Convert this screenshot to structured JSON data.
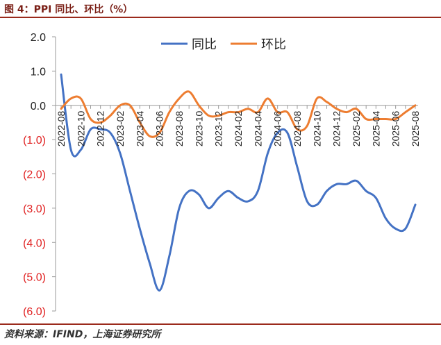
{
  "figure": {
    "title": "图 4：PPI 同比、环比（%）",
    "source": "资料来源：IFIND，上海证券研究所"
  },
  "colors": {
    "yoy": "#4472C4",
    "mom": "#ED7D31",
    "negative_tick": "#e02020",
    "positive_tick": "#222222",
    "axis": "#999999"
  },
  "chart_data": {
    "type": "line",
    "ylim": [
      -6.0,
      2.0
    ],
    "yticks": [
      2.0,
      1.0,
      0.0,
      -1.0,
      -2.0,
      -3.0,
      -4.0,
      -5.0,
      -6.0
    ],
    "ytick_labels": [
      "2.0",
      "1.0",
      "0.0",
      "(1.0)",
      "(2.0)",
      "(3.0)",
      "(4.0)",
      "(5.0)",
      "(6.0)"
    ],
    "x": [
      "2022-08",
      "2022-09",
      "2022-10",
      "2022-11",
      "2022-12",
      "2023-01",
      "2023-02",
      "2023-03",
      "2023-04",
      "2023-05",
      "2023-06",
      "2023-07",
      "2023-08",
      "2023-09",
      "2023-10",
      "2023-11",
      "2023-12",
      "2024-01",
      "2024-02",
      "2024-03",
      "2024-04",
      "2024-05",
      "2024-06",
      "2024-07",
      "2024-08",
      "2024-09",
      "2024-10",
      "2024-11",
      "2024-12",
      "2025-01",
      "2025-02",
      "2025-03",
      "2025-04",
      "2025-05",
      "2025-06",
      "2025-07",
      "2025-08"
    ],
    "xtick_labels": [
      "2022-08",
      "2022-10",
      "2022-12",
      "2023-02",
      "2023-04",
      "2023-06",
      "2023-08",
      "2023-10",
      "2023-12",
      "2024-02",
      "2024-04",
      "2024-06",
      "2024-08",
      "2024-10",
      "2024-12",
      "2025-02",
      "2025-04",
      "2025-06",
      "2025-08"
    ],
    "legend_position": "top-center",
    "series": [
      {
        "name": "同比",
        "color": "#4472C4",
        "values": [
          0.9,
          -1.3,
          -1.3,
          -0.7,
          -0.7,
          -0.8,
          -1.4,
          -2.5,
          -3.6,
          -4.6,
          -5.4,
          -4.4,
          -3.0,
          -2.5,
          -2.6,
          -3.0,
          -2.7,
          -2.5,
          -2.7,
          -2.8,
          -2.5,
          -1.4,
          -0.8,
          -0.8,
          -1.8,
          -2.8,
          -2.9,
          -2.5,
          -2.3,
          -2.3,
          -2.2,
          -2.5,
          -2.7,
          -3.3,
          -3.6,
          -3.6,
          -2.9
        ]
      },
      {
        "name": "环比",
        "color": "#ED7D31",
        "values": [
          -0.1,
          0.2,
          0.2,
          -0.4,
          -0.5,
          -0.3,
          0.0,
          0.0,
          -0.5,
          -0.9,
          -0.8,
          -0.2,
          0.2,
          0.4,
          0.0,
          -0.3,
          -0.3,
          -0.2,
          -0.2,
          -0.1,
          -0.2,
          0.2,
          -0.2,
          -0.2,
          -0.7,
          -0.6,
          0.2,
          0.1,
          -0.1,
          -0.2,
          -0.1,
          -0.4,
          -0.4,
          -0.4,
          -0.4,
          -0.2,
          0.0
        ]
      }
    ]
  }
}
